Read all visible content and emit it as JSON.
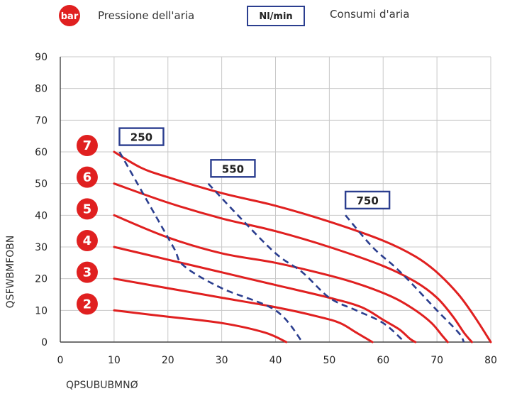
{
  "legend": {
    "pressure_badge": "bar",
    "pressure_label": "Pressione dell'aria",
    "flow_badge": "Nl/min",
    "flow_label": "Consumi d'aria"
  },
  "colors": {
    "curve": "#e02020",
    "badge": "#e02020",
    "flow": "#2b3e8f",
    "grid": "#c8c8c8",
    "axis": "#444444"
  },
  "chart_data": {
    "type": "line",
    "xlabel": "QPSUBUBMNØ",
    "ylabel": "QSFWBMFOBN",
    "xlim": [
      0,
      80
    ],
    "ylim": [
      0,
      90
    ],
    "x_ticks": [
      "0",
      "10",
      "20",
      "30",
      "40",
      "50",
      "60",
      "70",
      "80"
    ],
    "y_ticks": [
      "0",
      "10",
      "20",
      "30",
      "40",
      "50",
      "60",
      "70",
      "80",
      "90"
    ],
    "grid": true,
    "series": [
      {
        "name": "7",
        "points": [
          [
            10,
            60
          ],
          [
            15,
            55
          ],
          [
            20,
            52
          ],
          [
            30,
            47
          ],
          [
            40,
            43
          ],
          [
            50,
            38
          ],
          [
            60,
            32
          ],
          [
            66,
            27
          ],
          [
            70,
            22
          ],
          [
            74,
            15
          ],
          [
            77,
            8
          ],
          [
            80,
            0
          ]
        ]
      },
      {
        "name": "6",
        "points": [
          [
            10,
            50
          ],
          [
            20,
            44
          ],
          [
            30,
            39
          ],
          [
            40,
            35
          ],
          [
            50,
            30
          ],
          [
            60,
            24
          ],
          [
            66,
            19
          ],
          [
            70,
            14
          ],
          [
            73,
            8
          ],
          [
            75,
            3
          ],
          [
            76.5,
            0
          ]
        ]
      },
      {
        "name": "5",
        "points": [
          [
            10,
            40
          ],
          [
            20,
            33
          ],
          [
            30,
            28
          ],
          [
            40,
            25
          ],
          [
            50,
            21
          ],
          [
            56,
            18
          ],
          [
            62,
            14
          ],
          [
            66,
            10
          ],
          [
            69,
            6
          ],
          [
            71,
            2
          ],
          [
            72,
            0
          ]
        ]
      },
      {
        "name": "4",
        "points": [
          [
            10,
            30
          ],
          [
            20,
            26
          ],
          [
            30,
            22
          ],
          [
            40,
            18
          ],
          [
            50,
            14
          ],
          [
            56,
            11
          ],
          [
            60,
            7
          ],
          [
            63,
            4
          ],
          [
            65,
            1
          ],
          [
            66,
            0
          ]
        ]
      },
      {
        "name": "3",
        "points": [
          [
            10,
            20
          ],
          [
            20,
            17
          ],
          [
            30,
            14
          ],
          [
            40,
            11
          ],
          [
            48,
            8
          ],
          [
            52,
            6
          ],
          [
            55,
            3
          ],
          [
            58,
            0
          ]
        ]
      },
      {
        "name": "2",
        "points": [
          [
            10,
            10
          ],
          [
            20,
            8
          ],
          [
            30,
            6
          ],
          [
            38,
            3
          ],
          [
            42,
            0
          ]
        ]
      }
    ],
    "flow_lines": [
      {
        "name": "250",
        "points": [
          [
            11,
            60
          ],
          [
            16,
            45
          ],
          [
            21,
            30
          ],
          [
            23,
            24
          ],
          [
            30,
            17
          ],
          [
            40,
            10
          ],
          [
            45,
            0
          ]
        ]
      },
      {
        "name": "550",
        "points": [
          [
            27.5,
            50
          ],
          [
            33,
            40
          ],
          [
            40,
            28
          ],
          [
            45,
            22
          ],
          [
            50,
            14
          ],
          [
            55,
            10
          ],
          [
            60,
            6
          ],
          [
            64,
            0
          ]
        ]
      },
      {
        "name": "750",
        "points": [
          [
            53,
            40
          ],
          [
            58,
            30
          ],
          [
            62,
            24
          ],
          [
            65,
            19
          ],
          [
            70,
            10
          ],
          [
            74,
            3
          ],
          [
            75,
            0
          ]
        ]
      }
    ],
    "pressure_badges": [
      "7",
      "6",
      "5",
      "4",
      "3",
      "2"
    ]
  }
}
